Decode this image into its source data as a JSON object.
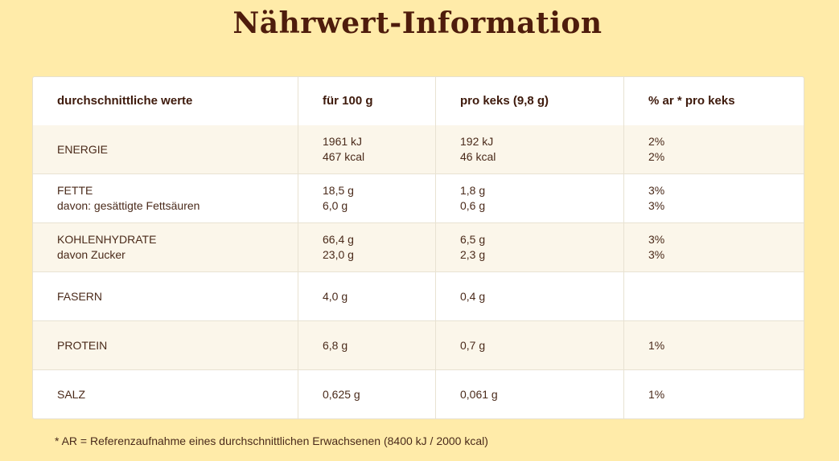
{
  "title": "Nährwert-Information",
  "table": {
    "headers": [
      "durchschnittliche werte",
      "für 100 g",
      "pro keks (9,8 g)",
      "% ar * pro keks"
    ],
    "rows": [
      {
        "name": [
          "ENERGIE"
        ],
        "per100": [
          "1961 kJ",
          "467 kcal"
        ],
        "perKeks": [
          "192 kJ",
          "46 kcal"
        ],
        "ar": [
          "2%",
          "2%"
        ]
      },
      {
        "name": [
          "FETTE",
          "davon: gesättigte Fettsäuren"
        ],
        "per100": [
          "18,5 g",
          "6,0 g"
        ],
        "perKeks": [
          "1,8 g",
          "0,6 g"
        ],
        "ar": [
          "3%",
          "3%"
        ]
      },
      {
        "name": [
          "KOHLENHYDRATE",
          "davon Zucker"
        ],
        "per100": [
          "66,4 g",
          "23,0 g"
        ],
        "perKeks": [
          "6,5 g",
          "2,3 g"
        ],
        "ar": [
          "3%",
          "3%"
        ]
      },
      {
        "name": [
          "FASERN"
        ],
        "per100": [
          "4,0 g"
        ],
        "perKeks": [
          "0,4 g"
        ],
        "ar": []
      },
      {
        "name": [
          "PROTEIN"
        ],
        "per100": [
          "6,8 g"
        ],
        "perKeks": [
          "0,7 g"
        ],
        "ar": [
          "1%"
        ]
      },
      {
        "name": [
          "SALZ"
        ],
        "per100": [
          "0,625 g"
        ],
        "perKeks": [
          "0,061 g"
        ],
        "ar": [
          "1%"
        ]
      }
    ]
  },
  "footnote": "* AR = Referenzaufnahme eines durchschnittlichen Erwachsenen (8400 kJ / 2000 kcal)"
}
